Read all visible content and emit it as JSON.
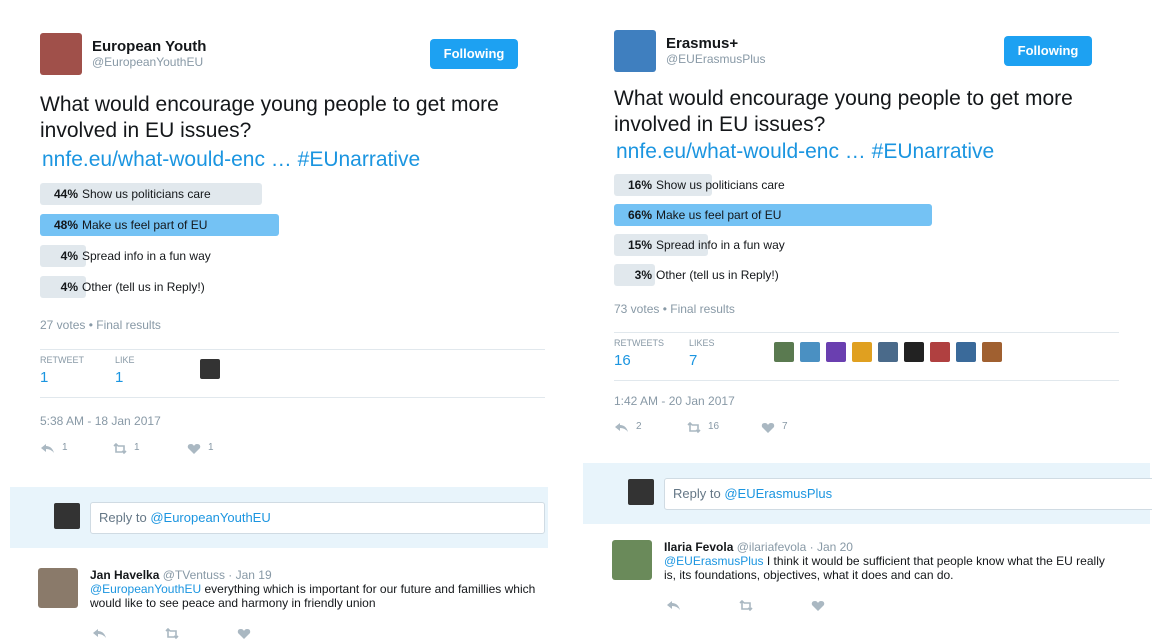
{
  "tweets": [
    {
      "name": "European Youth",
      "handle": "@EuropeanYouthEU",
      "follow": "Following",
      "text": "What would encourage young people to get more involved in EU issues?",
      "link": "nnfe.eu/what-would-enc …",
      "hashtag": "#EUnarrative",
      "poll": [
        {
          "value": 44,
          "label": "44%",
          "choice": "Show us politicians care"
        },
        {
          "value": 48,
          "label": "48%",
          "choice": "Make us feel part of EU"
        },
        {
          "value": 4,
          "label": "4%",
          "choice": "Spread info in a fun way"
        },
        {
          "value": 4,
          "label": "4%",
          "choice": "Other (tell us in Reply!)"
        }
      ],
      "votes": "27 votes • Final results",
      "retweet_label": "RETWEET",
      "retweets": "1",
      "like_label": "LIKE",
      "likes": "1",
      "time": "5:38 AM - 18 Jan 2017",
      "actions": {
        "reply": "1",
        "retweet": "1",
        "like": "1"
      },
      "reply_prompt": "Reply to",
      "reply_to": "@EuropeanYouthEU",
      "reply": {
        "name": "Jan Havelka",
        "handle": "@TVentuss",
        "date": "· Jan 19",
        "mention": "@EuropeanYouthEU",
        "text": "everything which is important for our future and famillies which would like to see peace and harmony in friendly union"
      }
    },
    {
      "name": "Erasmus+",
      "handle": "@EUErasmusPlus",
      "follow": "Following",
      "text": "What would encourage young people to get more involved in EU issues?",
      "link": "nnfe.eu/what-would-enc …",
      "hashtag": "#EUnarrative",
      "poll": [
        {
          "value": 16,
          "label": "16%",
          "choice": "Show us politicians care"
        },
        {
          "value": 66,
          "label": "66%",
          "choice": "Make us feel part of EU"
        },
        {
          "value": 15,
          "label": "15%",
          "choice": "Spread info in a fun way"
        },
        {
          "value": 3,
          "label": "3%",
          "choice": "Other (tell us in Reply!)"
        }
      ],
      "votes": "73 votes • Final results",
      "retweet_label": "RETWEETS",
      "retweets": "16",
      "like_label": "LIKES",
      "likes": "7",
      "time": "1:42 AM - 20 Jan 2017",
      "actions": {
        "reply": "2",
        "retweet": "16",
        "like": "7"
      },
      "reply_prompt": "Reply to",
      "reply_to": "@EUErasmusPlus",
      "reply": {
        "name": "Ilaria Fevola",
        "handle": "@ilariafevola",
        "date": "· Jan 20",
        "mention": "@EUErasmusPlus",
        "text": "I think it would be sufficient that people know what the EU really is, its foundations, objectives, what it does and can do."
      }
    }
  ]
}
